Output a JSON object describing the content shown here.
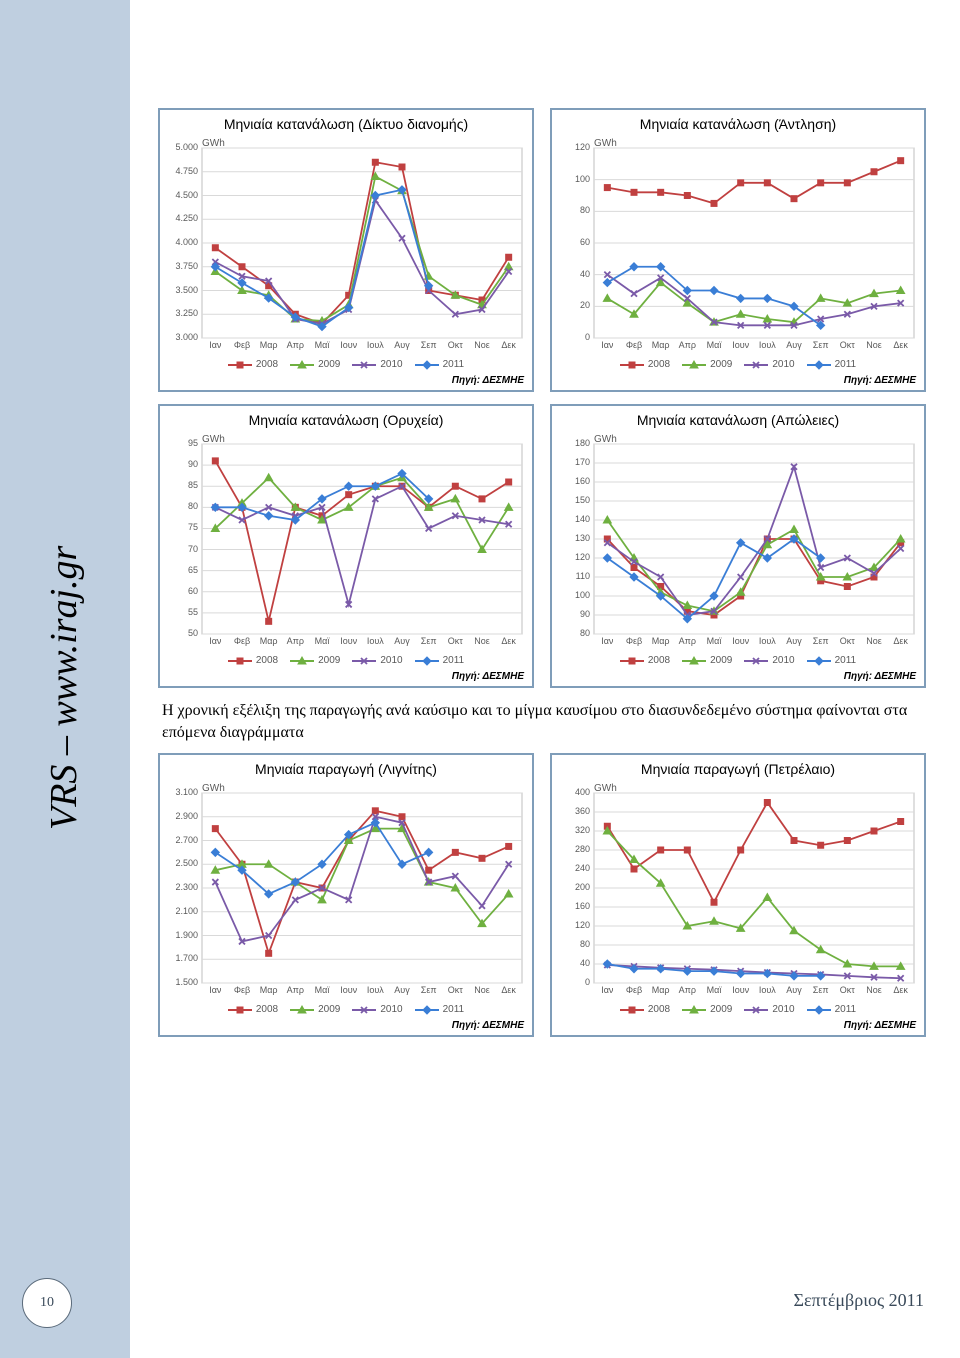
{
  "sidebar_text": "VRS – www.iraj.gr",
  "page_number": "10",
  "footer": "Σεπτέμβριος 2011",
  "body_text": "Η χρονική εξέλιξη της παραγωγής ανά καύσιμο και το μίγμα καυσίμου στο διασυνδεδεμένο σύστημα φαίνονται στα επόμενα διαγράμματα",
  "months": [
    "Ιαν",
    "Φεβ",
    "Μαρ",
    "Απρ",
    "Μαϊ",
    "Ιουν",
    "Ιουλ",
    "Αυγ",
    "Σεπ",
    "Οκτ",
    "Νοε",
    "Δεκ"
  ],
  "series_meta": {
    "2008": {
      "color": "#c04040",
      "marker": "square"
    },
    "2009": {
      "color": "#6fb040",
      "marker": "triangle"
    },
    "2010": {
      "color": "#7a5aa8",
      "marker": "x"
    },
    "2011": {
      "color": "#3a7ed6",
      "marker": "diamond"
    }
  },
  "source_label": "Πηγή: ΔΕΣΜΗΕ",
  "ylabel": "GWh",
  "charts": [
    {
      "title": "Μηνιαία κατανάλωση (Δίκτυο διανομής)",
      "ymin": 3000,
      "ymax": 5000,
      "ystep": 250,
      "yformat": "dot",
      "series": {
        "2008": [
          3950,
          3750,
          3550,
          3250,
          3150,
          3450,
          4850,
          4800,
          3500,
          3450,
          3400,
          3850
        ],
        "2009": [
          3700,
          3500,
          3450,
          3200,
          3180,
          3350,
          4700,
          4550,
          3650,
          3450,
          3350,
          3750
        ],
        "2010": [
          3800,
          3650,
          3600,
          3200,
          3150,
          3300,
          4450,
          4050,
          3500,
          3250,
          3300,
          3700
        ],
        "2011": [
          3750,
          3580,
          3420,
          3220,
          3120,
          3320,
          4500,
          4560,
          3550,
          null,
          null,
          null
        ]
      }
    },
    {
      "title": "Μηνιαία κατανάλωση (Άντληση)",
      "ymin": 0,
      "ymax": 120,
      "ystep": 20,
      "yformat": "plain",
      "series": {
        "2008": [
          95,
          92,
          92,
          90,
          85,
          98,
          98,
          88,
          98,
          98,
          105,
          112
        ],
        "2009": [
          25,
          15,
          35,
          22,
          10,
          15,
          12,
          10,
          25,
          22,
          28,
          30
        ],
        "2010": [
          40,
          28,
          38,
          25,
          10,
          8,
          8,
          8,
          12,
          15,
          20,
          22
        ],
        "2011": [
          35,
          45,
          45,
          30,
          30,
          25,
          25,
          20,
          8,
          null,
          null,
          null
        ]
      }
    },
    {
      "title": "Μηνιαία κατανάλωση (Ορυχεία)",
      "ymin": 50,
      "ymax": 95,
      "ystep": 5,
      "yformat": "plain",
      "series": {
        "2008": [
          91,
          80,
          53,
          80,
          78,
          83,
          85,
          85,
          80,
          85,
          82,
          86
        ],
        "2009": [
          75,
          81,
          87,
          80,
          77,
          80,
          85,
          87,
          80,
          82,
          70,
          80
        ],
        "2010": [
          80,
          77,
          80,
          78,
          80,
          57,
          82,
          85,
          75,
          78,
          77,
          76
        ],
        "2011": [
          80,
          80,
          78,
          77,
          82,
          85,
          85,
          88,
          82,
          null,
          null,
          null
        ]
      }
    },
    {
      "title": "Μηνιαία κατανάλωση (Απώλειες)",
      "ymin": 80,
      "ymax": 180,
      "ystep": 10,
      "yformat": "plain",
      "series": {
        "2008": [
          130,
          115,
          105,
          92,
          90,
          100,
          130,
          130,
          108,
          105,
          110,
          128
        ],
        "2009": [
          140,
          120,
          102,
          95,
          92,
          102,
          127,
          135,
          110,
          110,
          115,
          130
        ],
        "2010": [
          128,
          118,
          110,
          90,
          92,
          110,
          130,
          168,
          115,
          120,
          112,
          125
        ],
        "2011": [
          120,
          110,
          100,
          88,
          100,
          128,
          120,
          130,
          120,
          null,
          null,
          null
        ]
      }
    },
    {
      "title": "Μηνιαία παραγωγή (Λιγνίτης)",
      "ymin": 1500,
      "ymax": 3100,
      "ystep": 200,
      "yformat": "dot",
      "series": {
        "2008": [
          2800,
          2500,
          1750,
          2350,
          2300,
          2700,
          2950,
          2900,
          2450,
          2600,
          2550,
          2650
        ],
        "2009": [
          2450,
          2500,
          2500,
          2350,
          2200,
          2700,
          2800,
          2800,
          2350,
          2300,
          2000,
          2250
        ],
        "2010": [
          2350,
          1850,
          1900,
          2200,
          2300,
          2200,
          2900,
          2850,
          2350,
          2400,
          2150,
          2500
        ],
        "2011": [
          2600,
          2450,
          2250,
          2350,
          2500,
          2750,
          2850,
          2500,
          2600,
          null,
          null,
          null
        ]
      }
    },
    {
      "title": "Μηνιαία παραγωγή (Πετρέλαιο)",
      "ymin": 0,
      "ymax": 400,
      "ystep": 40,
      "yformat": "plain",
      "series": {
        "2008": [
          330,
          240,
          280,
          280,
          170,
          280,
          380,
          300,
          290,
          300,
          320,
          340
        ],
        "2009": [
          320,
          260,
          210,
          120,
          130,
          115,
          180,
          110,
          70,
          40,
          35,
          35
        ],
        "2010": [
          38,
          35,
          32,
          30,
          28,
          25,
          22,
          20,
          18,
          15,
          12,
          10
        ],
        "2011": [
          40,
          30,
          30,
          25,
          25,
          20,
          20,
          15,
          15,
          null,
          null,
          null
        ]
      }
    }
  ]
}
